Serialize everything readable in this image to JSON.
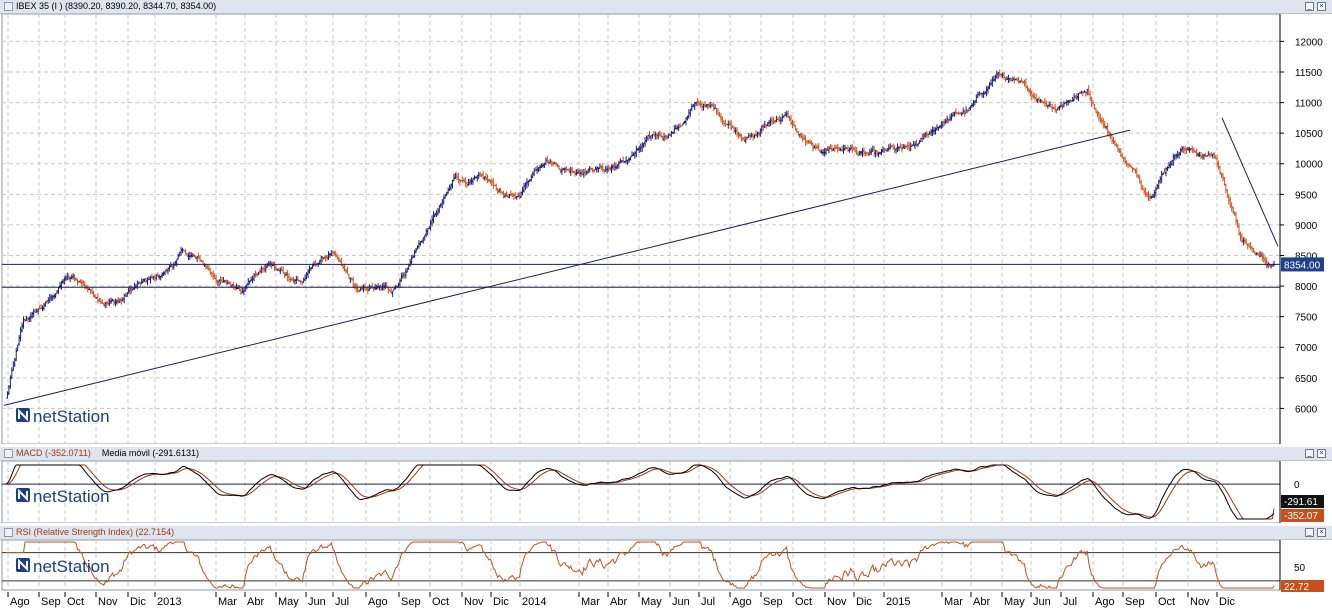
{
  "main_pane": {
    "title": "IBEX 35 (I ) (8390.20, 8390.20, 8344.70, 8354.00)",
    "price_label": "8354.00",
    "logo": "netStation",
    "minimize_icon": "minimize-icon",
    "close_icon": "close-icon"
  },
  "macd_pane": {
    "title_macd": "MACD (-352.0711)",
    "title_ma": "Media móvil (-291.6131)",
    "label_ma": "-291.61",
    "label_macd": "-352.07",
    "logo": "netStation"
  },
  "rsi_pane": {
    "title": "RSI (Relative Strength Index) (22.7154)",
    "label_value": "22.72",
    "logo": "netStation"
  },
  "x_axis": {
    "labels": [
      "Ago",
      "Sep",
      "Oct",
      "Nov",
      "Dic",
      "2013",
      "Mar",
      "Abr",
      "May",
      "Jun",
      "Jul",
      "Ago",
      "Sep",
      "Oct",
      "Nov",
      "Dic",
      "2014",
      "Mar",
      "Abr",
      "May",
      "Jun",
      "Jul",
      "Ago",
      "Sep",
      "Oct",
      "Nov",
      "Dic",
      "2015",
      "Mar",
      "Abr",
      "May",
      "Jun",
      "Jul",
      "Ago",
      "Sep",
      "Oct",
      "Nov",
      "Dic"
    ]
  },
  "colors": {
    "up": "#1a1f7a",
    "down": "#d0521b",
    "macd": "#000000",
    "macd_signal": "#9a3a10",
    "rsi": "#c0521b",
    "grid": "#c8c8c8",
    "price_label_bg": "#1f3f8f"
  },
  "chart_data": [
    {
      "type": "candlestick",
      "title": "IBEX 35 (I ) (8390.20, 8390.20, 8344.70, 8354.00)",
      "ylim": [
        5500,
        12350
      ],
      "yticks": [
        6000,
        6500,
        7000,
        7500,
        8000,
        8500,
        9000,
        9500,
        10000,
        10500,
        11000,
        11500,
        12000
      ],
      "last_close": 8354.0,
      "horizontal_lines": [
        8354,
        7980
      ],
      "trendlines": [
        {
          "from": [
            "Jul 2012",
            6050
          ],
          "to": [
            "Ago 2015",
            10550
          ]
        },
        {
          "from": [
            "Nov 2015",
            10750
          ],
          "to": [
            "Dic 2015",
            8650
          ]
        }
      ],
      "x_categories": [
        "Ago",
        "Sep",
        "Oct",
        "Nov",
        "Dic",
        "2013",
        "Mar",
        "Abr",
        "May",
        "Jun",
        "Jul",
        "Ago",
        "Sep",
        "Oct",
        "Nov",
        "Dic",
        "2014",
        "Mar",
        "Abr",
        "May",
        "Jun",
        "Jul",
        "Ago",
        "Sep",
        "Oct",
        "Nov",
        "Dic",
        "2015",
        "Mar",
        "Abr",
        "May",
        "Jun",
        "Jul",
        "Ago",
        "Sep",
        "Oct",
        "Nov",
        "Dic"
      ],
      "closes_monthly_approx": [
        7300,
        8100,
        7900,
        7800,
        8100,
        8500,
        7950,
        8400,
        8050,
        8600,
        7800,
        7950,
        8800,
        9800,
        9600,
        9450,
        10100,
        9900,
        10200,
        10400,
        11000,
        10700,
        10500,
        10800,
        10100,
        10300,
        10050,
        10200,
        10900,
        11400,
        11200,
        10900,
        11300,
        10200,
        9600,
        10300,
        10200,
        8700
      ]
    },
    {
      "type": "line",
      "title": "MACD (-352.0711)",
      "series": [
        {
          "name": "MACD",
          "last": -352.07
        },
        {
          "name": "Media móvil",
          "last": -291.61
        }
      ],
      "ylim": [
        -420,
        230
      ],
      "yticks": [
        0
      ]
    },
    {
      "type": "line",
      "title": "RSI (Relative Strength Index) (22.7154)",
      "series": [
        {
          "name": "RSI",
          "last": 22.72
        }
      ],
      "ylim": [
        20,
        85
      ],
      "yticks": [
        50
      ],
      "reference_lines": [
        70,
        30
      ]
    }
  ]
}
